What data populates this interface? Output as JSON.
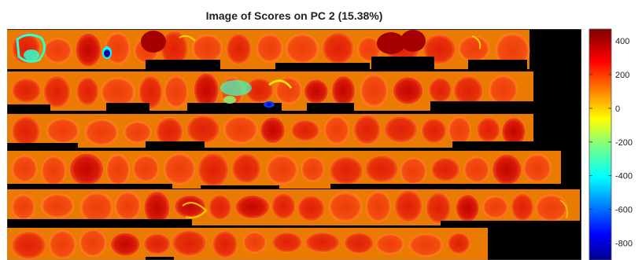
{
  "chart_data": {
    "type": "heatmap",
    "title": "Image of Scores on PC 2 (15.38%)",
    "xlabel": "",
    "ylabel": "",
    "colorbar": {
      "range": [
        -900,
        470
      ],
      "ticks": [
        400,
        200,
        0,
        -200,
        -400,
        -600,
        -800
      ],
      "tick_labels": [
        "400",
        "200",
        "0",
        "-200",
        "-400",
        "-600",
        "-800"
      ],
      "colormap": "jet"
    },
    "background_value_color": "#000000",
    "typical_score": 120,
    "notable_scores": [
      {
        "description": "blue spot, strip 1",
        "value": -850
      },
      {
        "description": "yellow-green edges, strip 1",
        "value": -320
      },
      {
        "description": "cyan spot, strip 2",
        "value": -650
      },
      {
        "description": "yellow-green region, strip 2",
        "value": -300
      },
      {
        "description": "dark red grains, strip 1",
        "value": 420
      }
    ],
    "strip_count": 6
  },
  "colors": {
    "background": "#000000",
    "typical": "#f23a0a",
    "axes_frame": "#888888"
  }
}
